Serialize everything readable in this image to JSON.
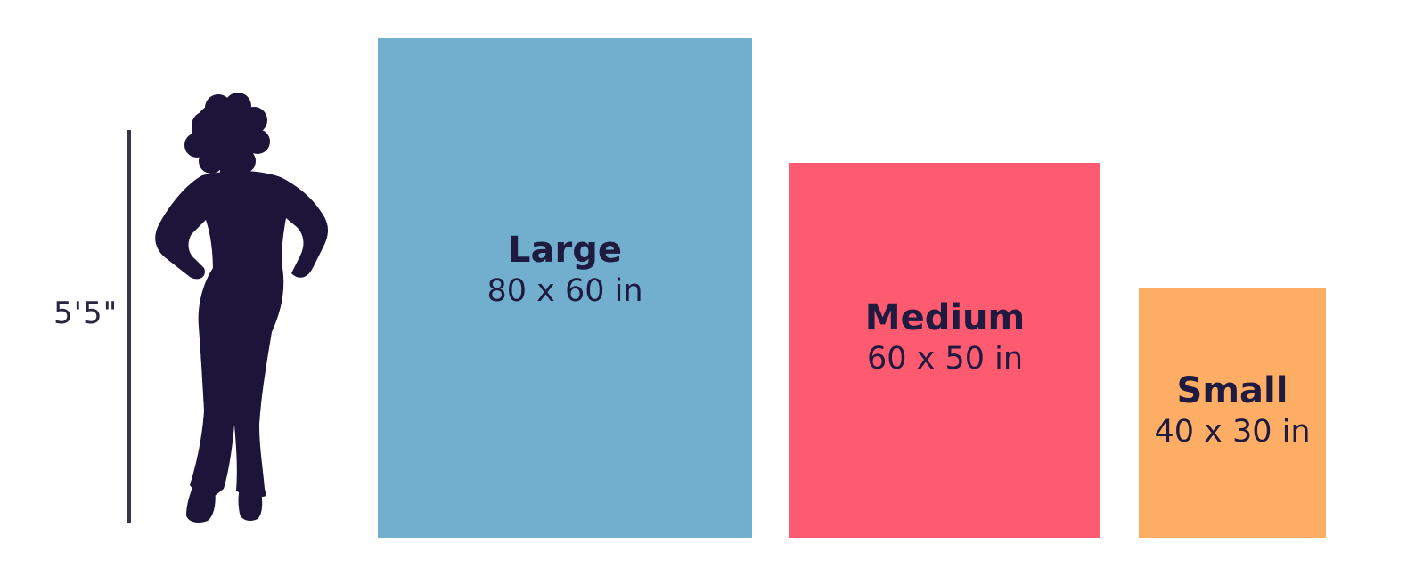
{
  "reference": {
    "height_label": "5'5\"",
    "figure_icon": "standing-woman-silhouette-icon",
    "figure_color": "#1c1539"
  },
  "sizes": [
    {
      "name": "Large",
      "dimensions": "80 x 60 in",
      "color": "#72afcf"
    },
    {
      "name": "Medium",
      "dimensions": "60 x 50 in",
      "color": "#fe5a70"
    },
    {
      "name": "Small",
      "dimensions": "40 x 30 in",
      "color": "#feae64"
    }
  ]
}
